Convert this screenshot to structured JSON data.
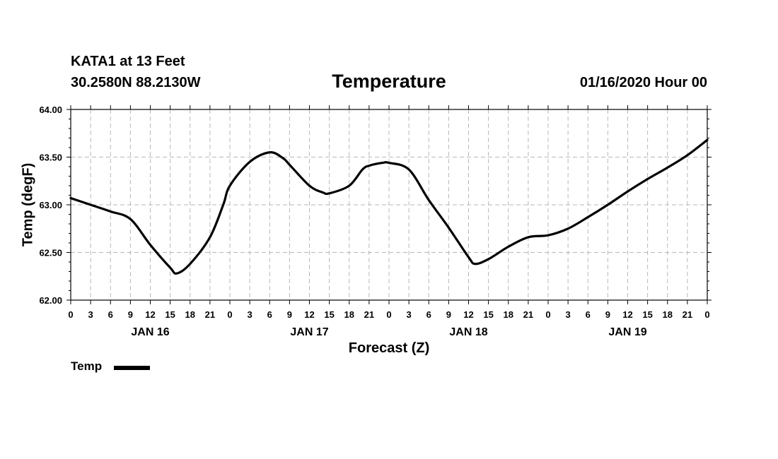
{
  "header": {
    "station": "KATA1 at 13 Feet",
    "coordinates": "30.2580N 88.2130W",
    "datetime": "01/16/2020 Hour 00"
  },
  "legend": {
    "label": "Temp"
  },
  "chart_data": {
    "type": "line",
    "title": "Temperature",
    "xlabel": "Forecast (Z)",
    "ylabel": "Temp (degF)",
    "ylim": [
      62.0,
      64.0
    ],
    "xlim": [
      0,
      96
    ],
    "grid": true,
    "legend_position": "bottom-left",
    "yticks": [
      "62.00",
      "62.50",
      "63.00",
      "63.50",
      "64.00"
    ],
    "ytick_values": [
      62.0,
      62.5,
      63.0,
      63.5,
      64.0
    ],
    "xtick_labels": [
      "0",
      "3",
      "6",
      "9",
      "12",
      "15",
      "18",
      "21",
      "0",
      "3",
      "6",
      "9",
      "12",
      "15",
      "18",
      "21",
      "0",
      "3",
      "6",
      "9",
      "12",
      "15",
      "18",
      "21",
      "0",
      "3",
      "6",
      "9",
      "12",
      "15",
      "18",
      "21",
      "0"
    ],
    "day_labels": [
      {
        "label": "JAN 16",
        "hour": 12
      },
      {
        "label": "JAN 17",
        "hour": 36
      },
      {
        "label": "JAN 18",
        "hour": 60
      },
      {
        "label": "JAN 19",
        "hour": 84
      }
    ],
    "series": [
      {
        "name": "Temp",
        "color": "#000000",
        "x": [
          0,
          3,
          6,
          9,
          12,
          15,
          16,
          18,
          21,
          23,
          24,
          27,
          30,
          32,
          33,
          36,
          38,
          39,
          42,
          44,
          45,
          47,
          48,
          51,
          54,
          57,
          60,
          61,
          63,
          66,
          69,
          72,
          75,
          78,
          81,
          84,
          87,
          90,
          93,
          96
        ],
        "values": [
          63.07,
          63.0,
          62.93,
          62.85,
          62.58,
          62.34,
          62.28,
          62.38,
          62.66,
          63.0,
          63.2,
          63.45,
          63.55,
          63.49,
          63.42,
          63.2,
          63.13,
          63.12,
          63.2,
          63.37,
          63.41,
          63.44,
          63.44,
          63.37,
          63.05,
          62.76,
          62.45,
          62.38,
          62.43,
          62.56,
          62.66,
          62.68,
          62.75,
          62.87,
          63.0,
          63.14,
          63.27,
          63.39,
          63.52,
          63.68
        ]
      }
    ]
  }
}
